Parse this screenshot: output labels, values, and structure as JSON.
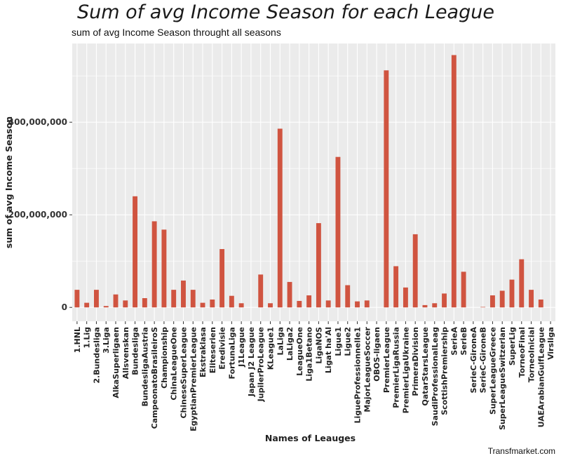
{
  "header": {
    "title": "Sum of avg Income Season for each League",
    "subtitle": "sum of avg Income Season throught all seasons"
  },
  "footer": {
    "caption": "Transfmarket.com"
  },
  "colors": {
    "bar": "#d05440",
    "panel": "#ebebeb",
    "grid": "#ffffff"
  },
  "chart_data": {
    "type": "bar",
    "title": "Sum of avg Income Season for each League",
    "subtitle": "sum of avg Income Season throught all seasons",
    "xlabel": "Names of Leauges",
    "ylabel": "sum of avg Income Season",
    "y_ticks": [
      0,
      200000000,
      400000000
    ],
    "y_tick_labels": [
      "0",
      "200,000,000",
      "400,000,000"
    ],
    "ylim": [
      -30000000,
      570000000
    ],
    "grid": true,
    "categories": [
      "1.HNL",
      "1.Lig",
      "2.Bundesliga",
      "3.Liga",
      "AlkaSuperligaen",
      "Allsvenskan",
      "Bundesliga",
      "BundesligaAustria",
      "CampeonatoBrasileiroS",
      "Championship",
      "ChinaLeagueOne",
      "ChineseSuperLeague",
      "EgyptianPremierLeague",
      "Ekstraklasa",
      "Eliteserien",
      "Eredivisie",
      "FortunaLiga",
      "J1League",
      "Japan J2 League",
      "JupilerProLeague",
      "KLeague1",
      "LaLiga",
      "LaLiga2",
      "LeagueOne",
      "Liga1Betano",
      "LigaNOS",
      "Ligat ha'Al",
      "Ligue1",
      "Ligue2",
      "LigueProfessionnelle1",
      "MajorLeagueSoccer",
      "OBOS-ligaen",
      "PremierLeague",
      "PremierLigaRussia",
      "PremierLigaUkraine",
      "PrimeraDivision",
      "QatarStarsLeague",
      "SaudiProfessionalLeag",
      "ScottishPremiership",
      "SerieA",
      "SerieB",
      "SerieC-GironeA",
      "SerieC-GironeB",
      "SuperLeagueGreece",
      "SuperLeagueSwitzerlan",
      "SuperLig",
      "TorneoFinal",
      "TorneoInicial",
      "UAEArabianGulfLeague",
      "Virsliga"
    ],
    "values": [
      38000000,
      10000000,
      38000000,
      3000000,
      28000000,
      15000000,
      240000000,
      20000000,
      186000000,
      168000000,
      38000000,
      58000000,
      38000000,
      10000000,
      17000000,
      126000000,
      25000000,
      9000000,
      0,
      71000000,
      9000000,
      386000000,
      55000000,
      14000000,
      26000000,
      182000000,
      15000000,
      325000000,
      48000000,
      13000000,
      15000000,
      0,
      512000000,
      89000000,
      43000000,
      158000000,
      5000000,
      9000000,
      30000000,
      545000000,
      77000000,
      0,
      1000000,
      26000000,
      36000000,
      60000000,
      104000000,
      38000000,
      17000000,
      0
    ]
  }
}
